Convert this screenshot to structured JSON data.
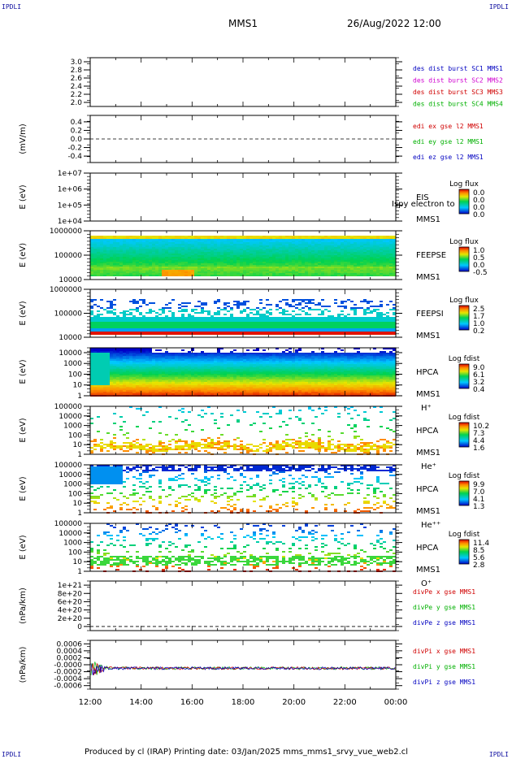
{
  "corners": {
    "tl": "IPDLI",
    "tr": "IPDLI",
    "bl": "IPDLI",
    "br": "IPDLI"
  },
  "header": {
    "spacecraft": "MMS1",
    "date": "26/Aug/2022 12:00"
  },
  "footer": {
    "text": "Produced by cl (IRAP)   Printing date: 03/Jan/2025   mms_mms1_srvy_vue_web2.cl"
  },
  "colors": {
    "mms1": "#0000c0",
    "mms2": "#d000d0",
    "mms3": "#d00000",
    "mms4": "#00b000",
    "red": "#d00000",
    "green": "#00b000",
    "blue": "#0000c0"
  },
  "chart_data": [
    {
      "type": "line",
      "ylabel": "",
      "yticks": [
        "3.0",
        "2.8",
        "2.6",
        "2.4",
        "2.2",
        "2.0"
      ],
      "ylim": [
        1.9,
        3.1
      ],
      "legend": [
        {
          "text": "des dist burst SC1 MMS1",
          "color": "mms1"
        },
        {
          "text": "des dist burst SC2 MMS2",
          "color": "mms2"
        },
        {
          "text": "des dist burst SC3 MMS3",
          "color": "mms3"
        },
        {
          "text": "des dist burst SC4 MMS4",
          "color": "mms4"
        }
      ]
    },
    {
      "type": "line",
      "ylabel": "(mV/m)",
      "yticks": [
        "0.4",
        "0.2",
        "0.0",
        "-0.2",
        "-0.4"
      ],
      "ylim": [
        -0.55,
        0.55
      ],
      "dashed_zero": true,
      "legend": [
        {
          "text": "edi ex gse l2 MMS1",
          "color": "red"
        },
        {
          "text": "edi ey gse l2 MMS1",
          "color": "green"
        },
        {
          "text": "edi ez gse l2 MMS1",
          "color": "blue"
        }
      ]
    },
    {
      "type": "heatmap",
      "ylabel": "E (eV)",
      "yticks": [
        "1e+07",
        "1e+06",
        "1e+05",
        "1e+04"
      ],
      "log_range": [
        4,
        7
      ],
      "labels": [
        "EIS",
        "MMS1"
      ],
      "overlay": "Ispy electron to",
      "cb_title": "Log flux",
      "cb_ticks": [
        "0.0",
        "0.0",
        "0.0",
        "0.0"
      ]
    },
    {
      "type": "heatmap",
      "ylabel": "E (eV)",
      "yticks": [
        "1000000",
        "100000",
        "10000"
      ],
      "log_range": [
        4,
        6
      ],
      "labels": [
        "FEEPSE",
        "MMS1"
      ],
      "cb_title": "Log flux",
      "cb_ticks": [
        "1.0",
        "0.5",
        "0.0",
        "-0.5"
      ]
    },
    {
      "type": "heatmap",
      "ylabel": "E (eV)",
      "yticks": [
        "1000000",
        "100000",
        "10000"
      ],
      "log_range": [
        4,
        6
      ],
      "labels": [
        "FEEPSI",
        "MMS1"
      ],
      "cb_title": "Log flux",
      "cb_ticks": [
        "2.5",
        "1.7",
        "1.0",
        "0.2"
      ]
    },
    {
      "type": "heatmap",
      "ylabel": "E (eV)",
      "yticks": [
        "10000",
        "1000",
        "100",
        "10",
        "1"
      ],
      "log_range": [
        0,
        4.45
      ],
      "labels": [
        "HPCA",
        "MMS1",
        "H⁺"
      ],
      "cb_title": "Log fdist",
      "cb_ticks": [
        "9.0",
        "6.1",
        "3.2",
        "0.4"
      ]
    },
    {
      "type": "heatmap",
      "ylabel": "E (eV)",
      "yticks": [
        "100000",
        "10000",
        "1000",
        "100",
        "10",
        "1"
      ],
      "log_range": [
        0,
        5
      ],
      "labels": [
        "HPCA",
        "MMS1",
        "He⁺"
      ],
      "cb_title": "Log fdist",
      "cb_ticks": [
        "10.2",
        "7.3",
        "4.4",
        "1.6"
      ]
    },
    {
      "type": "heatmap",
      "ylabel": "E (eV)",
      "yticks": [
        "100000",
        "10000",
        "1000",
        "100",
        "10",
        "1"
      ],
      "log_range": [
        0,
        5
      ],
      "labels": [
        "HPCA",
        "MMS1",
        "He⁺⁺"
      ],
      "cb_title": "Log fdist",
      "cb_ticks": [
        "9.9",
        "7.0",
        "4.1",
        "1.3"
      ]
    },
    {
      "type": "heatmap",
      "ylabel": "E (eV)",
      "yticks": [
        "100000",
        "10000",
        "1000",
        "100",
        "10",
        "1"
      ],
      "log_range": [
        0,
        5
      ],
      "labels": [
        "HPCA",
        "MMS1",
        "O⁺"
      ],
      "cb_title": "Log fdist",
      "cb_ticks": [
        "11.4",
        "8.5",
        "5.6",
        "2.8"
      ]
    },
    {
      "type": "line",
      "ylabel": "(nPa/km)",
      "yticks": [
        "1e+21",
        "8e+20",
        "6e+20",
        "4e+20",
        "2e+20",
        "0"
      ],
      "ylim": [
        -1e+20,
        1.1e+21
      ],
      "dashed_zero": true,
      "legend": [
        {
          "text": "divPe x gse MMS1",
          "color": "red"
        },
        {
          "text": "divPe y gse MMS1",
          "color": "green"
        },
        {
          "text": "divPe z gse MMS1",
          "color": "blue"
        }
      ]
    },
    {
      "type": "line",
      "ylabel": "(nPa/km)",
      "yticks": [
        "0.0006",
        "0.0004",
        "0.0002",
        "-0.0000",
        "-0.0002",
        "-0.0004",
        "-0.0006"
      ],
      "ylim": [
        -0.0007,
        0.0007
      ],
      "legend": [
        {
          "text": "divPi x gse MMS1",
          "color": "red"
        },
        {
          "text": "divPi y gse MMS1",
          "color": "green"
        },
        {
          "text": "divPi z gse MMS1",
          "color": "blue"
        }
      ],
      "noise": true
    }
  ],
  "time_axis": {
    "ticks": [
      "12:00",
      "14:00",
      "16:00",
      "18:00",
      "20:00",
      "22:00",
      "00:00"
    ]
  }
}
